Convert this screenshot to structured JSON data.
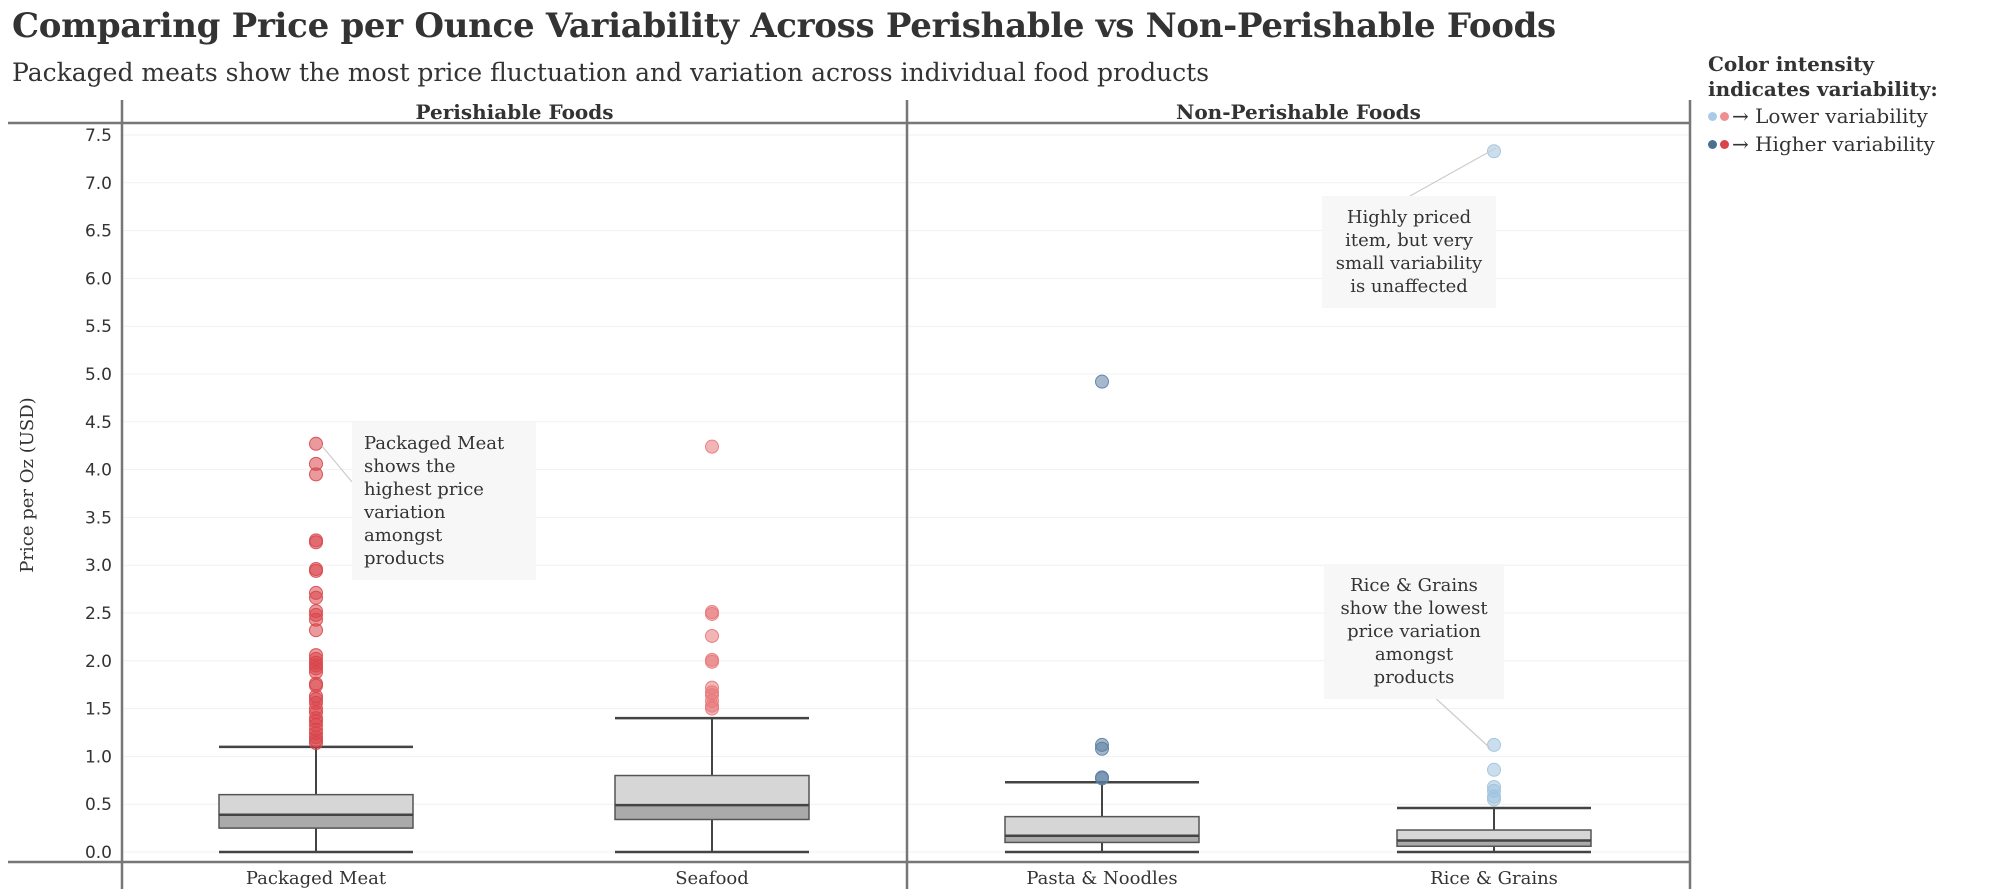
{
  "title": "Comparing Price per Ounce Variability Across Perishable vs Non-Perishable Foods",
  "subtitle": "Packaged meats show the most price fluctuation and variation across individual food products",
  "legend": {
    "title": "Color intensity indicates variability:",
    "low_label": "→ Lower variability",
    "high_label": "→ Higher variability",
    "low_colors": [
      "#a9cbe8",
      "#ef8f8f"
    ],
    "high_colors": [
      "#4a6f93",
      "#d9454b"
    ]
  },
  "chart_data": {
    "type": "box",
    "ylabel": "Price per Oz (USD)",
    "ylim": [
      0,
      7.5
    ],
    "yticks": [
      "0.0",
      "0.5",
      "1.0",
      "1.5",
      "2.0",
      "2.5",
      "3.0",
      "3.5",
      "4.0",
      "4.5",
      "5.0",
      "5.5",
      "6.0",
      "6.5",
      "7.0",
      "7.5"
    ],
    "grid": true,
    "facets": [
      {
        "name": "Perishiable Foods",
        "categories": [
          {
            "name": "Packaged Meat",
            "color": "#d9454b",
            "min": 0.0,
            "q1": 0.25,
            "median": 0.39,
            "q3": 0.6,
            "max": 1.1,
            "outliers": [
              4.27,
              4.06,
              3.95,
              3.26,
              3.24,
              2.96,
              2.94,
              2.71,
              2.66,
              2.52,
              2.48,
              2.43,
              2.32,
              2.06,
              2.02,
              1.98,
              1.95,
              1.92,
              1.88,
              1.76,
              1.74,
              1.63,
              1.6,
              1.56,
              1.5,
              1.46,
              1.4,
              1.37,
              1.33,
              1.28,
              1.24,
              1.2,
              1.17,
              1.14
            ]
          },
          {
            "name": "Seafood",
            "color": "#e8787a",
            "min": 0.0,
            "q1": 0.34,
            "median": 0.49,
            "q3": 0.8,
            "max": 1.4,
            "outliers": [
              4.24,
              2.51,
              2.49,
              2.26,
              2.01,
              1.99,
              1.72,
              1.67,
              1.64,
              1.58,
              1.53,
              1.5
            ]
          }
        ]
      },
      {
        "name": "Non-Perishable Foods",
        "categories": [
          {
            "name": "Pasta & Noodles",
            "color": "#5b7da3",
            "min": 0.0,
            "q1": 0.1,
            "median": 0.17,
            "q3": 0.37,
            "max": 0.73,
            "outliers": [
              4.92,
              1.12,
              1.08,
              0.78,
              0.77
            ]
          },
          {
            "name": "Rice & Grains",
            "color": "#9fc3df",
            "min": 0.0,
            "q1": 0.06,
            "median": 0.12,
            "q3": 0.23,
            "max": 0.46,
            "outliers": [
              7.33,
              1.12,
              0.86,
              0.68,
              0.64,
              0.58,
              0.55
            ]
          }
        ]
      }
    ],
    "annotations": [
      {
        "text": "Packaged Meat shows the highest price variation amongst products",
        "category": "Packaged Meat",
        "y": 4.27
      },
      {
        "text": "Highly priced item, but very small variability is unaffected",
        "category": "Rice & Grains",
        "y": 7.33
      },
      {
        "text": "Rice & Grains show the lowest price variation amongst products",
        "category": "Rice & Grains",
        "y": 1.12
      }
    ]
  }
}
